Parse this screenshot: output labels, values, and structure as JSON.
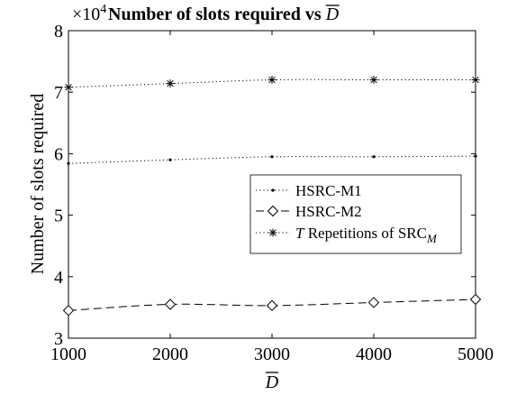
{
  "chart_data": {
    "type": "line",
    "title": "Number of slots required vs ",
    "title_symbol": "D",
    "xlabel": "D",
    "ylabel": "Number of slots required",
    "y_exponent": "×10",
    "y_exponent_power": "4",
    "xlim": [
      1000,
      5000
    ],
    "ylim": [
      3,
      8
    ],
    "y_scale_note": "values in units of 10^4",
    "x": [
      1000,
      2000,
      3000,
      4000,
      5000
    ],
    "x_tick_labels": [
      "1000",
      "2000",
      "3000",
      "4000",
      "5000"
    ],
    "y_ticks": [
      3,
      4,
      5,
      6,
      7,
      8
    ],
    "y_tick_labels": [
      "3",
      "4",
      "5",
      "6",
      "7",
      "8"
    ],
    "grid": false,
    "legend_position": "right-center",
    "series": [
      {
        "name": "HSRC-M1",
        "values": [
          5.84,
          5.9,
          5.95,
          5.95,
          5.96
        ],
        "line_style": "dotted",
        "marker": "point"
      },
      {
        "name": "HSRC-M2",
        "values": [
          3.45,
          3.55,
          3.53,
          3.58,
          3.63
        ],
        "line_style": "dashed",
        "marker": "diamond"
      },
      {
        "name_italic": "T",
        "name_rest": " Repetitions of SRC",
        "name_sub": "M",
        "values": [
          7.08,
          7.14,
          7.2,
          7.2,
          7.2
        ],
        "line_style": "dotted",
        "marker": "asterisk"
      }
    ],
    "colors": {
      "line": "#000000",
      "background": "#ffffff"
    }
  }
}
